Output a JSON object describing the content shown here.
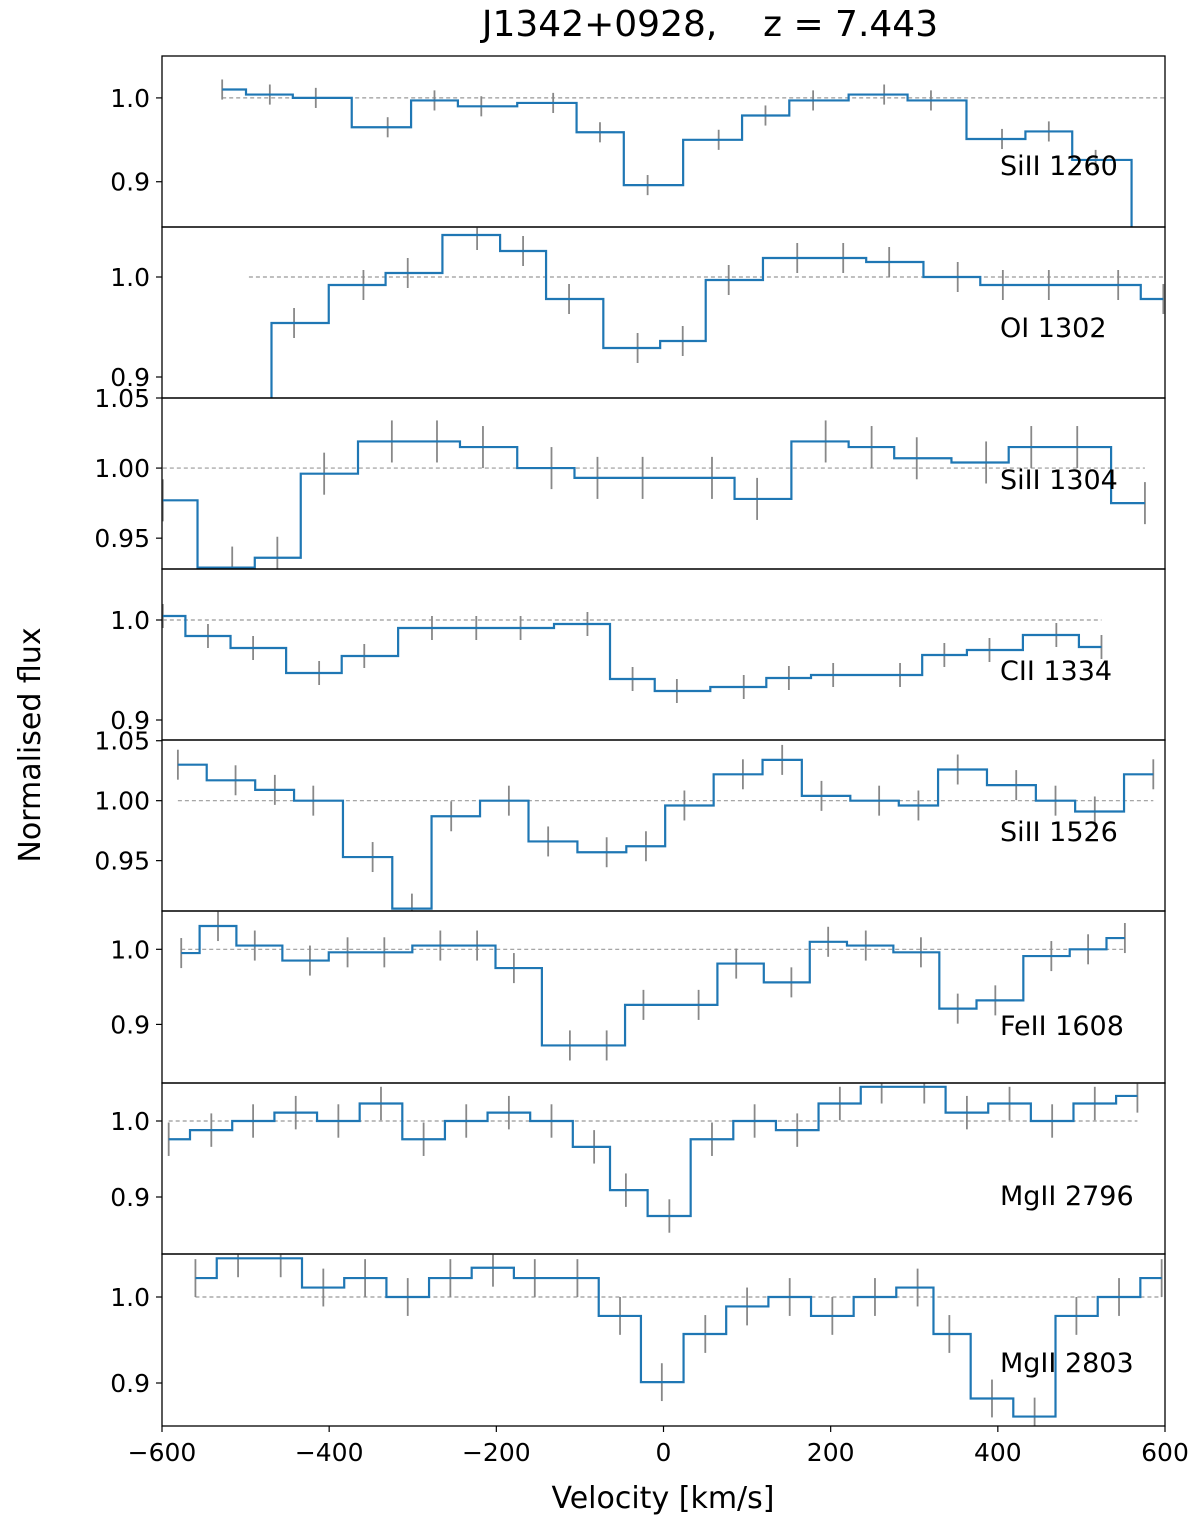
{
  "chart_data": {
    "type": "line",
    "style": "step-mid with error bars, stacked panels",
    "title": "J1342+0928,    z = 7.443",
    "xlabel": "Velocity [km/s]",
    "ylabel": "Normalised flux",
    "xlim": [
      -600,
      600
    ],
    "xticks": [
      -600,
      -400,
      -200,
      0,
      200,
      400,
      600
    ],
    "xtick_labels": [
      "−600",
      "−400",
      "−200",
      "0",
      "200",
      "400",
      "600"
    ],
    "continuum_level": 1.0,
    "colors": {
      "flux": "#1f77b4",
      "errorbar": "#888888",
      "continuum": "#999999"
    },
    "panels": [
      {
        "label": "SiII 1260",
        "ylim": [
          0.846,
          1.05
        ],
        "yticks": [
          1.0,
          0.9
        ],
        "ytick_labels": [
          "1.0",
          "0.9"
        ],
        "err": 0.012,
        "v": [
          -528,
          -471,
          -416,
          -330,
          -274,
          -218,
          -132,
          -76,
          -19,
          66,
          122,
          179,
          264,
          320,
          405,
          461,
          517,
          603
        ],
        "f": [
          1.01,
          1.004,
          1.0,
          0.965,
          0.997,
          0.99,
          0.994,
          0.959,
          0.896,
          0.95,
          0.979,
          0.997,
          1.004,
          0.997,
          0.951,
          0.96,
          0.926,
          0.8
        ]
      },
      {
        "label": "OI 1302",
        "ylim": [
          0.879,
          1.05
        ],
        "yticks": [
          1.0,
          0.9
        ],
        "ytick_labels": [
          "1.0",
          "0.9"
        ],
        "err": 0.015,
        "v": [
          -496,
          -442,
          -359,
          -306,
          -223,
          -168,
          -113,
          -31,
          23,
          78,
          160,
          215,
          270,
          352,
          406,
          461,
          544,
          598
        ],
        "f": [
          0.8,
          0.954,
          0.992,
          1.004,
          1.042,
          1.026,
          0.978,
          0.929,
          0.936,
          0.997,
          1.019,
          1.019,
          1.015,
          1.0,
          0.992,
          0.992,
          0.992,
          0.978
        ]
      },
      {
        "label": "SiII 1304",
        "ylim": [
          0.928,
          1.05
        ],
        "yticks": [
          1.05,
          1.0,
          0.95
        ],
        "ytick_labels": [
          "1.05",
          "1.00",
          "0.95"
        ],
        "err": 0.015,
        "v": [
          -599,
          -516,
          -462,
          -406,
          -325,
          -271,
          -216,
          -134,
          -79,
          -25,
          58,
          112,
          194,
          249,
          303,
          386,
          440,
          495,
          576
        ],
        "f": [
          0.977,
          0.929,
          0.936,
          0.996,
          1.019,
          1.019,
          1.015,
          1.0,
          0.993,
          0.993,
          0.993,
          0.978,
          1.019,
          1.015,
          1.007,
          1.004,
          1.015,
          1.015,
          0.975
        ]
      },
      {
        "label": "CII 1334",
        "ylim": [
          0.88,
          1.051
        ],
        "yticks": [
          1.0,
          0.9
        ],
        "ytick_labels": [
          "1.0",
          "0.9"
        ],
        "err": 0.012,
        "v": [
          -599,
          -545,
          -491,
          -412,
          -358,
          -277,
          -224,
          -171,
          -91,
          -37,
          16,
          96,
          150,
          203,
          283,
          336,
          390,
          470,
          524
        ],
        "f": [
          1.004,
          0.984,
          0.972,
          0.947,
          0.964,
          0.992,
          0.992,
          0.992,
          0.996,
          0.941,
          0.929,
          0.933,
          0.942,
          0.945,
          0.945,
          0.965,
          0.97,
          0.985,
          0.973
        ]
      },
      {
        "label": "SiII 1526",
        "ylim": [
          0.908,
          1.0506
        ],
        "yticks": [
          1.05,
          1.0,
          0.95
        ],
        "ytick_labels": [
          "1.05",
          "1.00",
          "0.95"
        ],
        "err": 0.0125,
        "v": [
          -581,
          -512,
          -465,
          -419,
          -348,
          -301,
          -254,
          -185,
          -138,
          -68,
          -21,
          25,
          95,
          142,
          189,
          258,
          305,
          352,
          422,
          469,
          516,
          586
        ],
        "f": [
          1.03,
          1.017,
          1.009,
          1.0,
          0.953,
          0.91,
          0.987,
          1.0,
          0.966,
          0.957,
          0.962,
          0.996,
          1.022,
          1.034,
          1.004,
          1.0,
          0.996,
          1.026,
          1.013,
          1.0,
          0.991,
          1.022
        ]
      },
      {
        "label": "FeII 1608",
        "ylim": [
          0.822,
          1.051
        ],
        "yticks": [
          1.0,
          0.9
        ],
        "ytick_labels": [
          "1.0",
          "0.9"
        ],
        "err": 0.02,
        "v": [
          -577,
          -533,
          -489,
          -423,
          -378,
          -334,
          -267,
          -223,
          -179,
          -112,
          -68,
          -24,
          42,
          87,
          153,
          197,
          242,
          308,
          352,
          397,
          464,
          508,
          552
        ],
        "f": [
          0.995,
          1.031,
          1.005,
          0.985,
          0.996,
          0.996,
          1.005,
          1.005,
          0.975,
          0.872,
          0.872,
          0.926,
          0.926,
          0.981,
          0.956,
          1.01,
          1.005,
          0.996,
          0.921,
          0.932,
          0.991,
          1.0,
          1.015
        ]
      },
      {
        "label": "MgII 2796",
        "ylim": [
          0.825,
          1.05
        ],
        "yticks": [
          1.0,
          0.9
        ],
        "ytick_labels": [
          "1.0",
          "0.9"
        ],
        "err": 0.022,
        "v": [
          -592,
          -541,
          -491,
          -440,
          -389,
          -338,
          -287,
          -236,
          -185,
          -134,
          -83,
          -45,
          7,
          58,
          109,
          160,
          211,
          261,
          312,
          363,
          414,
          465,
          516,
          567
        ],
        "f": [
          0.976,
          0.988,
          1.0,
          1.011,
          1.0,
          1.023,
          0.976,
          1.0,
          1.011,
          1.0,
          0.966,
          0.909,
          0.875,
          0.976,
          1.0,
          0.988,
          1.023,
          1.045,
          1.045,
          1.011,
          1.023,
          1.0,
          1.023,
          1.033
        ]
      },
      {
        "label": "MgII 2803",
        "ylim": [
          0.85,
          1.05
        ],
        "yticks": [
          1.0,
          0.9
        ],
        "ytick_labels": [
          "1.0",
          "0.9"
        ],
        "err": 0.022,
        "v": [
          -560,
          -509,
          -458,
          -407,
          -357,
          -306,
          -255,
          -204,
          -154,
          -103,
          -52,
          -2,
          50,
          100,
          151,
          202,
          253,
          304,
          342,
          393,
          444,
          494,
          545,
          596
        ],
        "f": [
          1.022,
          1.045,
          1.045,
          1.011,
          1.022,
          1.0,
          1.022,
          1.034,
          1.022,
          1.022,
          0.978,
          0.901,
          0.957,
          0.989,
          1.0,
          0.978,
          1.0,
          1.011,
          0.957,
          0.882,
          0.861,
          0.978,
          1.0,
          1.022
        ]
      }
    ]
  }
}
